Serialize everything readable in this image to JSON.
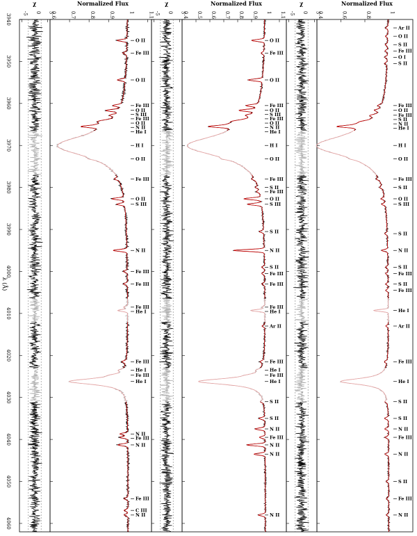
{
  "chart_data": {
    "type": "line",
    "y_axis": {
      "label": "λ (Å)",
      "range": [
        3940,
        4062
      ],
      "ticks": [
        3940,
        3950,
        3960,
        3970,
        3980,
        3990,
        4000,
        4010,
        4020,
        4030,
        4040,
        4050,
        4060
      ]
    },
    "colors": {
      "observed": "#000000",
      "observed_masked": "#aaaaaa",
      "model": "#cc0000",
      "model_masked": "#e8a0a0",
      "residual": "#000000",
      "residual_masked": "#aaaaaa"
    },
    "panels": [
      {
        "residual": {
          "label": "χ",
          "range": [
            -6,
            6
          ],
          "ticks": [
            "-5",
            "0",
            "5"
          ]
        },
        "flux": {
          "label": "Normalized Flux",
          "range": [
            0.6,
            1.12
          ],
          "ticks": [
            "0.6",
            "0.7",
            "0.8",
            "0.9",
            "1",
            "1.1"
          ]
        },
        "lines": [
          {
            "lam": 3945,
            "text": "O II",
            "depth": 0.05
          },
          {
            "lam": 3948,
            "text": "Fe III",
            "depth": 0.02
          },
          {
            "lam": 3954.4,
            "text": "O II",
            "depth": 0.04
          },
          {
            "lam": 3960.5,
            "text": "Fe III",
            "depth": 0.04
          },
          {
            "lam": 3961.6,
            "text": "O II",
            "depth": 0.05
          },
          {
            "lam": 3962.8,
            "text": "Fe III",
            "depth": 0.03
          },
          {
            "lam": 3964.3,
            "text": "N II",
            "depth": 0.03
          },
          {
            "lam": 3961.8,
            "text": "S III",
            "depth": 0.02
          },
          {
            "lam": 3964,
            "text": "O II",
            "depth": 0.02
          },
          {
            "lam": 3965.5,
            "text": "He I",
            "depth": 0.08
          },
          {
            "lam": 3970,
            "text": "H I",
            "depth": 0.0
          },
          {
            "lam": 3973.2,
            "text": "O II",
            "depth": 0.02
          },
          {
            "lam": 3978,
            "text": "Fe III",
            "depth": 0.02
          },
          {
            "lam": 3982.7,
            "text": "O II",
            "depth": 0.06
          },
          {
            "lam": 3984,
            "text": "S III",
            "depth": 0.04
          },
          {
            "lam": 3995,
            "text": "N II",
            "depth": 0.07
          },
          {
            "lam": 4000,
            "text": "Fe III",
            "depth": 0.02
          },
          {
            "lam": 4003,
            "text": "Fe III",
            "depth": 0.02
          },
          {
            "lam": 4008.5,
            "text": "Fe III",
            "depth": 0.02
          },
          {
            "lam": 4009.3,
            "text": "He I",
            "depth": 0.05
          },
          {
            "lam": 4021.5,
            "text": "Fe III",
            "depth": 0.02
          },
          {
            "lam": 4023.5,
            "text": "He I",
            "depth": 0.02
          },
          {
            "lam": 4024.7,
            "text": "Fe III",
            "depth": 0.02
          },
          {
            "lam": 4026.2,
            "text": "He I",
            "depth": 0.0
          },
          {
            "lam": 4038.7,
            "text": "N II",
            "depth": 0.04
          },
          {
            "lam": 4039.5,
            "text": "Fe III",
            "depth": 0.04
          },
          {
            "lam": 4041.3,
            "text": "N II",
            "depth": 0.05
          },
          {
            "lam": 4054.1,
            "text": "Fe III",
            "depth": 0.02
          },
          {
            "lam": 4056.9,
            "text": "C III",
            "depth": 0.02
          },
          {
            "lam": 4058,
            "text": "N II",
            "depth": 0.02
          }
        ]
      },
      {
        "residual": {
          "label": "χ",
          "range": [
            -6,
            6
          ],
          "ticks": [
            "-5",
            "0",
            "5"
          ]
        },
        "flux": {
          "label": "Normalized Flux",
          "range": [
            0.4,
            1.15
          ],
          "ticks": [
            "0.4",
            "0.5",
            "0.6",
            "0.7",
            "0.8",
            "0.9",
            "1",
            "1.1"
          ]
        },
        "lines": [
          {
            "lam": 3945,
            "text": "O II",
            "depth": 0.09
          },
          {
            "lam": 3948,
            "text": "Fe III",
            "depth": 0.02
          },
          {
            "lam": 3954.4,
            "text": "O II",
            "depth": 0.1
          },
          {
            "lam": 3960.5,
            "text": "Fe III",
            "depth": 0.08
          },
          {
            "lam": 3961.6,
            "text": "O II",
            "depth": 0.1
          },
          {
            "lam": 3962.8,
            "text": "Fe III",
            "depth": 0.04
          },
          {
            "lam": 3964.3,
            "text": "N II",
            "depth": 0.04
          },
          {
            "lam": 3961.8,
            "text": "S III",
            "depth": 0.02
          },
          {
            "lam": 3964,
            "text": "O II",
            "depth": 0.02
          },
          {
            "lam": 3965.5,
            "text": "He I",
            "depth": 0.14
          },
          {
            "lam": 3970,
            "text": "H I",
            "depth": 0.0
          },
          {
            "lam": 3973.2,
            "text": "O II",
            "depth": 0.03
          },
          {
            "lam": 3978,
            "text": "Fe III",
            "depth": 0.02
          },
          {
            "lam": 3980,
            "text": "S II",
            "depth": 0.02
          },
          {
            "lam": 3981,
            "text": "Fe III",
            "depth": 0.02
          },
          {
            "lam": 3982.7,
            "text": "O II",
            "depth": 0.12
          },
          {
            "lam": 3984,
            "text": "S III",
            "depth": 0.1
          },
          {
            "lam": 3990.5,
            "text": "S II",
            "depth": 0.03
          },
          {
            "lam": 3995,
            "text": "N II",
            "depth": 0.22
          },
          {
            "lam": 3999,
            "text": "S II",
            "depth": 0.02
          },
          {
            "lam": 4000.5,
            "text": "Fe III",
            "depth": 0.02
          },
          {
            "lam": 4003,
            "text": "Fe III",
            "depth": 0.02
          },
          {
            "lam": 4008.5,
            "text": "Fe III",
            "depth": 0.02
          },
          {
            "lam": 4009.3,
            "text": "He I",
            "depth": 0.1
          },
          {
            "lam": 4013,
            "text": "Ar II",
            "depth": 0.02
          },
          {
            "lam": 4021.5,
            "text": "Fe III",
            "depth": 0.02
          },
          {
            "lam": 4023.5,
            "text": "He I",
            "depth": 0.02
          },
          {
            "lam": 4024.7,
            "text": "Fe III",
            "depth": 0.02
          },
          {
            "lam": 4026.2,
            "text": "He I",
            "depth": 0.0
          },
          {
            "lam": 4031,
            "text": "S II",
            "depth": 0.02
          },
          {
            "lam": 4035,
            "text": "S II",
            "depth": 0.04
          },
          {
            "lam": 4037.5,
            "text": "N II",
            "depth": 0.07
          },
          {
            "lam": 4039.5,
            "text": "Fe III",
            "depth": 0.04
          },
          {
            "lam": 4041.3,
            "text": "N II",
            "depth": 0.13
          },
          {
            "lam": 4043.5,
            "text": "N II",
            "depth": 0.08
          },
          {
            "lam": 4058,
            "text": "N II",
            "depth": 0.05
          }
        ]
      },
      {
        "residual": {
          "label": "χ",
          "range": [
            -6,
            6
          ],
          "ticks": [
            "-5",
            "0",
            "5"
          ]
        },
        "flux": {
          "label": "Normalized Flux",
          "range": [
            0.4,
            1.2
          ],
          "ticks": [
            "0.4",
            "0.6",
            "0.8",
            "1"
          ]
        },
        "lines": [
          {
            "lam": 3942,
            "text": "Ar II",
            "depth": 0.02
          },
          {
            "lam": 3944,
            "text": "O II",
            "depth": 0.02
          },
          {
            "lam": 3946,
            "text": "S II",
            "depth": 0.02
          },
          {
            "lam": 3947.5,
            "text": "Fe III",
            "depth": 0.02
          },
          {
            "lam": 3949,
            "text": "O I",
            "depth": 0.02
          },
          {
            "lam": 3950.5,
            "text": "S II",
            "depth": 0.02
          },
          {
            "lam": 3960.5,
            "text": "Fe III",
            "depth": 0.03
          },
          {
            "lam": 3961.6,
            "text": "O II",
            "depth": 0.04
          },
          {
            "lam": 3962.8,
            "text": "Fe III",
            "depth": 0.03
          },
          {
            "lam": 3964.3,
            "text": "N II",
            "depth": 0.03
          },
          {
            "lam": 3963,
            "text": "S II",
            "depth": 0.02
          },
          {
            "lam": 3965.5,
            "text": "He I",
            "depth": 0.15
          },
          {
            "lam": 3970,
            "text": "H I",
            "depth": 0.0
          },
          {
            "lam": 3973.2,
            "text": "O II",
            "depth": 0.02
          },
          {
            "lam": 3978,
            "text": "Fe III",
            "depth": 0.02
          },
          {
            "lam": 3980,
            "text": "S II",
            "depth": 0.02
          },
          {
            "lam": 3982.7,
            "text": "O II",
            "depth": 0.03
          },
          {
            "lam": 3984,
            "text": "S III",
            "depth": 0.03
          },
          {
            "lam": 3991,
            "text": "S II",
            "depth": 0.02
          },
          {
            "lam": 3995,
            "text": "N II",
            "depth": 0.05
          },
          {
            "lam": 3999,
            "text": "S II",
            "depth": 0.02
          },
          {
            "lam": 4000.5,
            "text": "Fe III",
            "depth": 0.02
          },
          {
            "lam": 4003,
            "text": "S II",
            "depth": 0.02
          },
          {
            "lam": 4004.5,
            "text": "Fe III",
            "depth": 0.02
          },
          {
            "lam": 4009.3,
            "text": "He I",
            "depth": 0.12
          },
          {
            "lam": 4013,
            "text": "Ar II",
            "depth": 0.02
          },
          {
            "lam": 4021.5,
            "text": "Fe III",
            "depth": 0.02
          },
          {
            "lam": 4026.2,
            "text": "He I",
            "depth": 0.0
          },
          {
            "lam": 4031,
            "text": "S II",
            "depth": 0.02
          },
          {
            "lam": 4035,
            "text": "S II",
            "depth": 0.03
          },
          {
            "lam": 4037.5,
            "text": "N II",
            "depth": 0.03
          },
          {
            "lam": 4039.5,
            "text": "Fe III",
            "depth": 0.03
          },
          {
            "lam": 4043.5,
            "text": "N II",
            "depth": 0.03
          },
          {
            "lam": 4050,
            "text": "S II",
            "depth": 0.02
          },
          {
            "lam": 4054.1,
            "text": "Fe III",
            "depth": 0.02
          },
          {
            "lam": 4058,
            "text": "N II",
            "depth": 0.02
          }
        ]
      }
    ]
  }
}
